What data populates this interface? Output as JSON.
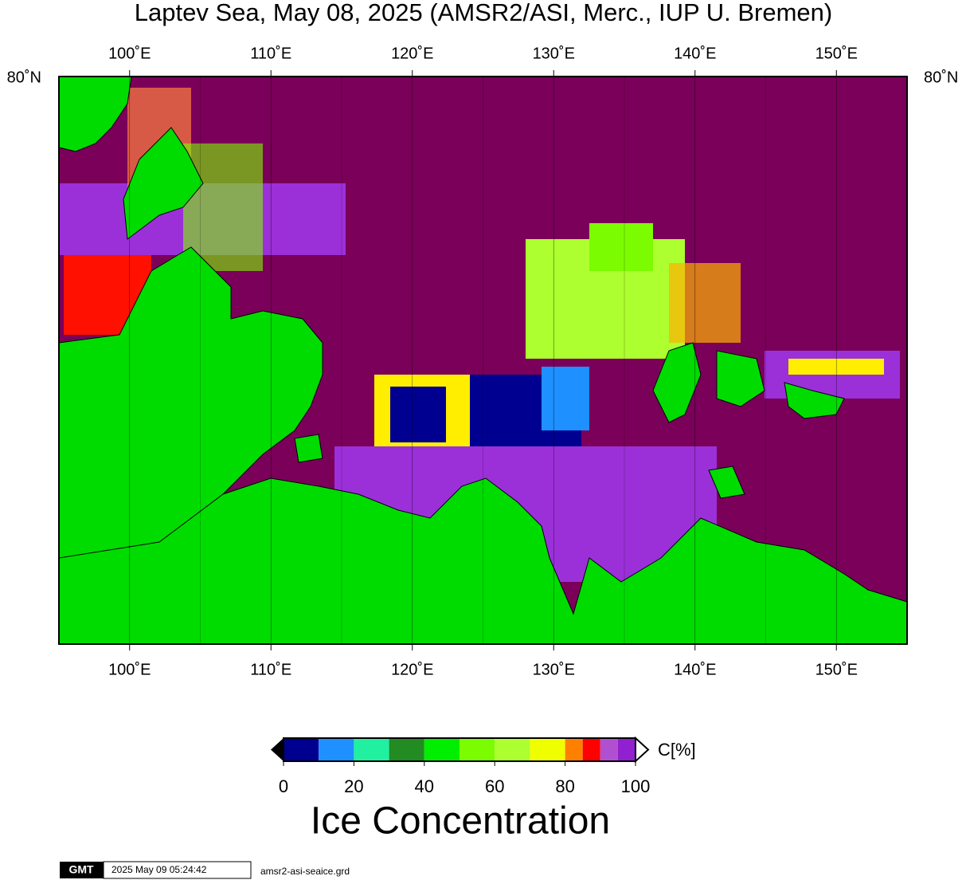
{
  "header": {
    "title": "Laptev Sea, May 08, 2025 (AMSR2/ASI, Merc., IUP U. Bremen)"
  },
  "map": {
    "lon_range": [
      95,
      155
    ],
    "lon_ticks": [
      {
        "value": 100,
        "label": "100˚E"
      },
      {
        "value": 110,
        "label": "110˚E"
      },
      {
        "value": 120,
        "label": "120˚E"
      },
      {
        "value": 130,
        "label": "130˚E"
      },
      {
        "value": 140,
        "label": "140˚E"
      },
      {
        "value": 150,
        "label": "150˚E"
      }
    ],
    "lat_label": "80˚N",
    "ocean_color": "#7a0059",
    "land_color": "#00dc00"
  },
  "colorbar": {
    "title": "Ice Concentration",
    "unit": "C[%]",
    "range": [
      0,
      100
    ],
    "ticks": [
      0,
      20,
      40,
      60,
      80,
      100
    ],
    "bins": [
      0,
      10,
      20,
      30,
      40,
      50,
      60,
      70,
      80,
      85,
      90,
      95,
      100
    ],
    "colors": [
      "#000090",
      "#1e90ff",
      "#20f0a0",
      "#228b22",
      "#00ee00",
      "#7cfc00",
      "#adff2f",
      "#f0ff00",
      "#ff8000",
      "#ff0000",
      "#b050d0",
      "#9020d0"
    ]
  },
  "footer": {
    "logo": "GMT",
    "timestamp": "2025 May 09 05:24:42",
    "file": "amsr2-asi-seaice.grd"
  }
}
